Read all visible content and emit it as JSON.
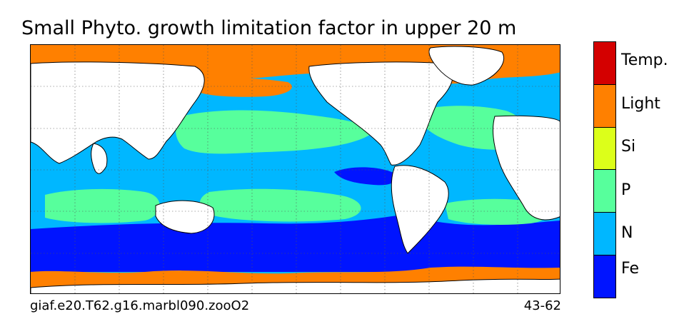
{
  "title": "Small Phyto. growth limitation factor in upper 20 m",
  "caption": {
    "run_id": "giaf.e20.T62.g16.marbl090.zooO2",
    "years": "43-62"
  },
  "legend": {
    "categories": [
      {
        "label": "Temp.",
        "color": "#d40000"
      },
      {
        "label": "Light",
        "color": "#ff8000"
      },
      {
        "label": "Si",
        "color": "#dcff1a"
      },
      {
        "label": "P",
        "color": "#57ff9c"
      },
      {
        "label": "N",
        "color": "#00b7ff"
      },
      {
        "label": "Fe",
        "color": "#0014ff"
      }
    ]
  },
  "map": {
    "projection": "cylindrical, Pacific-centered",
    "land_color": "#ffffff",
    "grid": "dotted"
  }
}
